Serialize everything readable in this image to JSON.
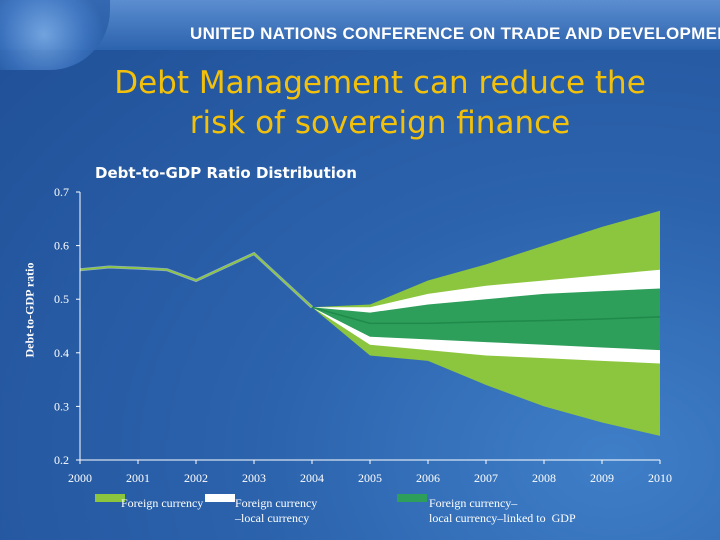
{
  "header": {
    "org_name": "UNITED NATIONS CONFERENCE ON TRADE AND DEVELOPMENT",
    "slide_title_line1": "Debt Management can reduce the",
    "slide_title_line2": "risk of sovereign finance"
  },
  "colors": {
    "foreign": "#8cc63f",
    "foreign_local": "#ffffff",
    "linked_gdp": "#2e9e5b",
    "history_line": "#8cc63f",
    "median_line": "#1f8a4a",
    "axis": "#ffffff"
  },
  "chart_data": {
    "type": "area",
    "title": "Debt-to-GDP Ratio Distribution",
    "xlabel": "",
    "ylabel": "Debt-to-GDP ratio",
    "xlim": [
      2000,
      2010
    ],
    "ylim": [
      0.2,
      0.7
    ],
    "x_ticks": [
      "2000",
      "2001",
      "2002",
      "2003",
      "2004",
      "2005",
      "2006",
      "2007",
      "2008",
      "2009",
      "2010"
    ],
    "y_ticks": [
      "0.2",
      "0.3",
      "0.4",
      "0.5",
      "0.6",
      "0.7"
    ],
    "grid": false,
    "history": {
      "x": [
        2000,
        2000.5,
        2001,
        2001.5,
        2002,
        2002.5,
        2003,
        2004
      ],
      "y": [
        0.555,
        0.56,
        0.558,
        0.555,
        0.535,
        0.56,
        0.585,
        0.485
      ]
    },
    "series": [
      {
        "name": "Foreign currency",
        "x": [
          2004,
          2005,
          2006,
          2007,
          2008,
          2009,
          2010
        ],
        "upper": [
          0.485,
          0.49,
          0.535,
          0.565,
          0.6,
          0.635,
          0.665
        ],
        "lower": [
          0.485,
          0.395,
          0.385,
          0.34,
          0.3,
          0.27,
          0.245
        ]
      },
      {
        "name": "Foreign currency\n–local currency",
        "x": [
          2004,
          2005,
          2006,
          2007,
          2008,
          2009,
          2010
        ],
        "upper": [
          0.485,
          0.485,
          0.51,
          0.525,
          0.535,
          0.545,
          0.555
        ],
        "lower": [
          0.485,
          0.415,
          0.405,
          0.395,
          0.39,
          0.385,
          0.38
        ]
      },
      {
        "name": "Foreign currency–\nlocal currency–linked to  GDP",
        "x": [
          2004,
          2005,
          2006,
          2007,
          2008,
          2009,
          2010
        ],
        "upper": [
          0.485,
          0.475,
          0.49,
          0.5,
          0.51,
          0.515,
          0.52
        ],
        "lower": [
          0.485,
          0.43,
          0.425,
          0.42,
          0.415,
          0.41,
          0.405
        ],
        "median": [
          0.485,
          0.455,
          0.455,
          0.458,
          0.46,
          0.463,
          0.467
        ]
      }
    ],
    "legend_position": "bottom"
  }
}
